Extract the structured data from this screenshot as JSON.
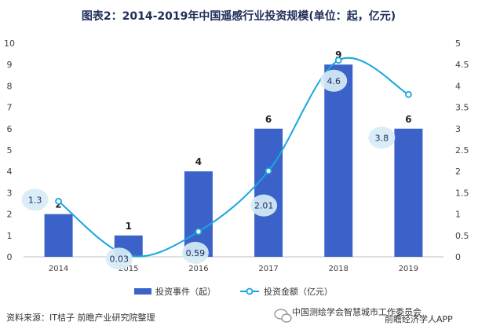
{
  "chart_data": {
    "type": "bar",
    "title": "图表2：2014-2019年中国遥感行业投资规模(单位：起，亿元)",
    "categories": [
      "2014",
      "2015",
      "2016",
      "2017",
      "2018",
      "2019"
    ],
    "series": [
      {
        "name": "投资事件（起）",
        "type": "bar",
        "axis": "left",
        "values": [
          2,
          1,
          4,
          6,
          9,
          6
        ],
        "color": "#3a62c9"
      },
      {
        "name": "投资金额（亿元）",
        "type": "line",
        "axis": "right",
        "values": [
          1.3,
          0.03,
          0.59,
          2.01,
          4.6,
          3.8
        ],
        "color": "#19a6e0"
      }
    ],
    "y_left": {
      "min": 0,
      "max": 10,
      "ticks": [
        0,
        1,
        2,
        3,
        4,
        5,
        6,
        7,
        8,
        9,
        10
      ]
    },
    "y_right": {
      "min": 0,
      "max": 5,
      "ticks": [
        "0",
        "0.5",
        "1",
        "1.5",
        "2",
        "2.5",
        "3",
        "3.5",
        "4",
        "4.5",
        "5"
      ]
    },
    "legend_position": "bottom",
    "grid": false
  },
  "footer": {
    "source": "资料来源：IT桔子 前瞻产业研究院整理",
    "wechat": "中国测绘学会智慧城市工作委员会",
    "app": "前瞻经济学人APP"
  },
  "colors": {
    "bar": "#3a62c9",
    "line": "#19a6e0",
    "label_bubble": "#d6ebf5",
    "title": "#1f2d5a"
  }
}
